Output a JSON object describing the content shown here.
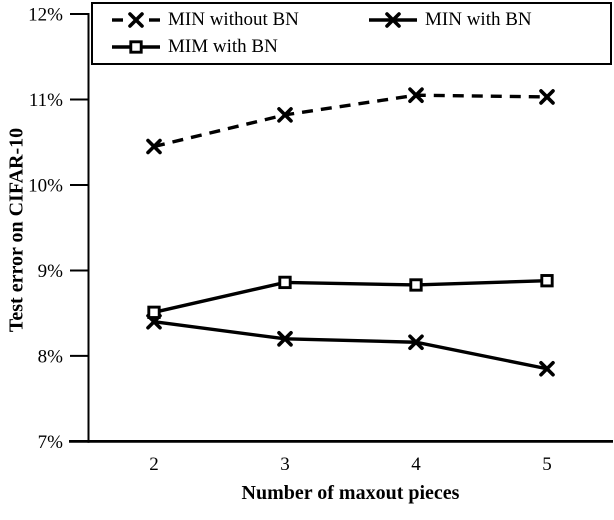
{
  "chart_data": {
    "type": "line",
    "x": [
      2,
      3,
      4,
      5
    ],
    "xticks": [
      "2",
      "3",
      "4",
      "5"
    ],
    "series": [
      {
        "name": "MIN without BN",
        "line_style": "dashed",
        "marker": "x",
        "values": [
          10.45,
          10.82,
          11.05,
          11.03
        ]
      },
      {
        "name": "MIN with BN",
        "line_style": "solid",
        "marker": "x",
        "values": [
          8.4,
          8.2,
          8.16,
          7.85
        ]
      },
      {
        "name": "MIM with BN",
        "line_style": "solid",
        "marker": "square",
        "values": [
          8.51,
          8.86,
          8.83,
          8.88
        ]
      }
    ],
    "xlabel": "Number of maxout pieces",
    "ylabel": "Test error on CIFAR-10",
    "ylim": [
      7,
      12
    ],
    "ytick_values": [
      7,
      8,
      9,
      10,
      11,
      12
    ],
    "yticks": [
      "7%",
      "8%",
      "9%",
      "10%",
      "11%",
      "12%"
    ],
    "grid": false,
    "legend_position": "top-boxed",
    "legend_columns": 2
  },
  "colors": {
    "foreground": "#000000",
    "background": "#ffffff"
  }
}
